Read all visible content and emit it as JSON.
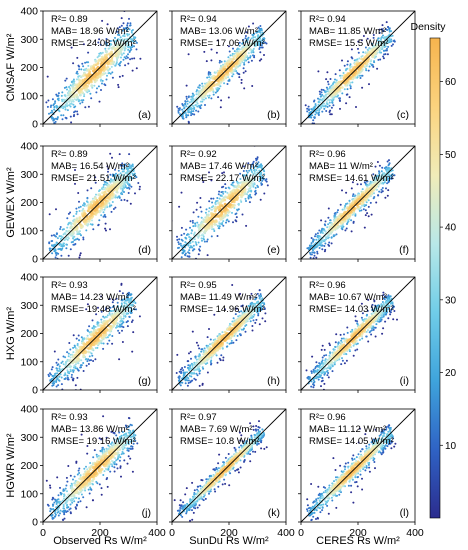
{
  "figure": {
    "colorbar": {
      "title": "Density",
      "ticks": [
        10,
        20,
        30,
        40,
        50,
        60
      ],
      "range": [
        0,
        66
      ],
      "colors": [
        "#2b2c8e",
        "#2f63c5",
        "#3fa4dc",
        "#70cde8",
        "#b8e8e8",
        "#f0ecb8",
        "#fbd37e",
        "#f6b44e"
      ]
    },
    "row_labels": [
      "CMSAF W/m²",
      "GEWEX W/m²",
      "HXG W/m²",
      "HGWR W/m²"
    ],
    "col_labels": [
      "Observed Rs  W/m²",
      "SunDu Rs W/m²",
      "CERES Rs W/m²"
    ]
  },
  "chart_data": {
    "type": "scatter",
    "xlim": [
      0,
      400
    ],
    "ylim": [
      0,
      400
    ],
    "x_ticks": [
      0,
      200,
      400
    ],
    "y_ticks": [
      0,
      100,
      200,
      300,
      400
    ],
    "reference_line": "1:1",
    "panels": [
      {
        "label": "(a)",
        "r2": "R²= 0.89",
        "mab": "MAB= 18.96 W/m²",
        "rmse": "RMSE= 24.08 W/m²",
        "spread": 24
      },
      {
        "label": "(b)",
        "r2": "R²= 0.94",
        "mab": "MAB= 13.06 W/m²",
        "rmse": "RMSE= 17.06 W/m²",
        "spread": 17
      },
      {
        "label": "(c)",
        "r2": "R²= 0.94",
        "mab": "MAB= 11.85 W/m²",
        "rmse": "RMSE= 15.5 W/m²",
        "spread": 15.5
      },
      {
        "label": "(d)",
        "r2": "R²= 0.89",
        "mab": "MAB= 16.54 W/m²",
        "rmse": "RMSE= 21.51 W/m²",
        "spread": 21.5
      },
      {
        "label": "(e)",
        "r2": "R²= 0.92",
        "mab": "MAB= 17.46 W/m²",
        "rmse": "RMSE= 22.17 W/m²",
        "spread": 22
      },
      {
        "label": "(f)",
        "r2": "R²= 0.96",
        "mab": "MAB= 11 W/m²",
        "rmse": "RMSE= 14.61 W/m²",
        "spread": 14.6
      },
      {
        "label": "(g)",
        "r2": "R²= 0.93",
        "mab": "MAB= 14.23 W/m²",
        "rmse": "RMSE= 19.48 W/m²",
        "spread": 19.5
      },
      {
        "label": "(h)",
        "r2": "R²= 0.95",
        "mab": "MAB= 11.49 W/m²",
        "rmse": "RMSE= 14.96 W/m²",
        "spread": 15
      },
      {
        "label": "(i)",
        "r2": "R²= 0.96",
        "mab": "MAB= 10.67 W/m²",
        "rmse": "RMSE= 14.03 W/m²",
        "spread": 14
      },
      {
        "label": "(j)",
        "r2": "R²= 0.93",
        "mab": "MAB= 13.86 W/m²",
        "rmse": "RMSE= 19.16 W/m²",
        "spread": 19.2
      },
      {
        "label": "(k)",
        "r2": "R²= 0.97",
        "mab": "MAB= 7.69 W/m²",
        "rmse": "RMSE= 10.8 W/m²",
        "spread": 10.8
      },
      {
        "label": "(l)",
        "r2": "R²= 0.96",
        "mab": "MAB= 11.12 W/m²",
        "rmse": "RMSE= 14.05 W/m²",
        "spread": 14
      }
    ]
  }
}
